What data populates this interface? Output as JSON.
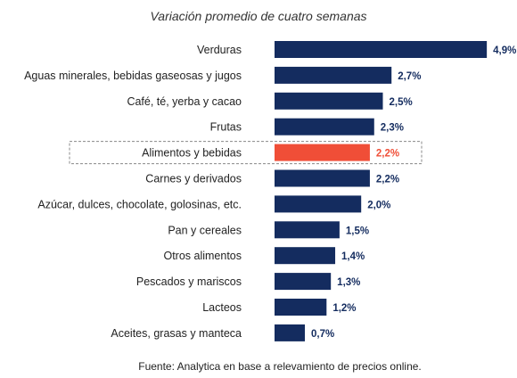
{
  "chart_data": {
    "type": "bar",
    "orientation": "horizontal",
    "title": "Variación promedio de cuatro semanas",
    "categories": [
      "Verduras",
      "Aguas minerales, bebidas gaseosas y jugos",
      "Café, té, yerba y cacao",
      "Frutas",
      "Alimentos y bebidas",
      "Carnes y derivados",
      "Azúcar, dulces, chocolate, golosinas, etc.",
      "Pan y cereales",
      "Otros alimentos",
      "Pescados y mariscos",
      "Lacteos",
      "Aceites, grasas y manteca"
    ],
    "values": [
      4.9,
      2.7,
      2.5,
      2.3,
      2.2,
      2.2,
      2.0,
      1.5,
      1.4,
      1.3,
      1.2,
      0.7
    ],
    "value_labels": [
      "4,9%",
      "2,7%",
      "2,5%",
      "2,3%",
      "2,2%",
      "2,2%",
      "2,0%",
      "1,5%",
      "1,4%",
      "1,3%",
      "1,2%",
      "0,7%"
    ],
    "highlight_category": "Alimentos y bebidas",
    "grid": false,
    "legend": "none",
    "colors": {
      "bar": "#142C5F",
      "highlight": "#F04E37",
      "value_label": "#142C5F",
      "highlight_label": "#F04E37",
      "highlight_box": "#888888"
    }
  },
  "footer": {
    "source": "Fuente: Analytica en base a relevamiento de precios online."
  }
}
